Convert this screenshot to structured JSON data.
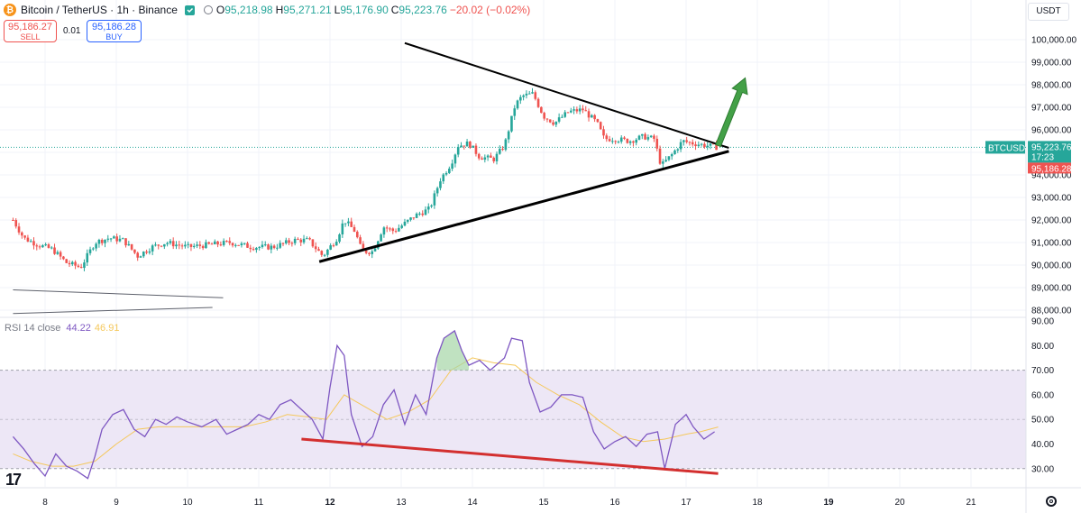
{
  "header": {
    "symbol": "Bitcoin / TetherUS · 1h · Binance",
    "logo_glyph": "₿",
    "ohlc": [
      {
        "key": "O",
        "value": "95,218.98",
        "color": "green"
      },
      {
        "key": "H",
        "value": "95,271.21",
        "color": "green"
      },
      {
        "key": "L",
        "value": "95,176.90",
        "color": "green"
      },
      {
        "key": "C",
        "value": "95,223.76",
        "color": "green"
      }
    ],
    "change": "−20.02 (−0.02%)"
  },
  "trade": {
    "sell_price": "95,186.27",
    "sell_label": "SELL",
    "spread": "0.01",
    "buy_price": "95,186.28",
    "buy_label": "BUY"
  },
  "price_scale": {
    "currency": "USDT",
    "symbol_tag": "BTCUSDT",
    "last_price": "95,223.76",
    "countdown": "17:23",
    "bid_price": "95,186.28"
  },
  "rsi": {
    "label": "RSI 14 close",
    "value": "44.22",
    "ma_value": "46.91"
  },
  "colors": {
    "up": "#26a69a",
    "down": "#ef5350",
    "rsi_line": "#7e57c2",
    "rsi_ma": "#f5c85c",
    "rsi_band": "#ede7f6",
    "divergence": "#d32f2f",
    "arrow": "#43a047"
  },
  "chart_data": [
    {
      "type": "candlestick",
      "title": "Bitcoin / TetherUS · 1h · Binance",
      "x_ticks": [
        "8",
        "9",
        "10",
        "11",
        "12",
        "13",
        "14",
        "15",
        "16",
        "17",
        "18",
        "19",
        "20",
        "21"
      ],
      "y_ticks": [
        "100,000.00",
        "99,000.00",
        "98,000.00",
        "97,000.00",
        "96,000.00",
        "95,000.00",
        "94,000.00",
        "93,000.00",
        "92,000.00",
        "91,000.00",
        "90,000.00",
        "89,000.00",
        "88,000.00"
      ],
      "ylim": [
        87700,
        100300
      ],
      "series_close_path": [
        [
          7.55,
          92000
        ],
        [
          7.7,
          91200
        ],
        [
          7.9,
          90900
        ],
        [
          8.1,
          90700
        ],
        [
          8.3,
          90100
        ],
        [
          8.5,
          89900
        ],
        [
          8.7,
          91000
        ],
        [
          8.9,
          91200
        ],
        [
          9.1,
          91100
        ],
        [
          9.3,
          90400
        ],
        [
          9.5,
          90800
        ],
        [
          9.7,
          91000
        ],
        [
          10.0,
          90800
        ],
        [
          10.3,
          90900
        ],
        [
          10.6,
          91000
        ],
        [
          10.9,
          90800
        ],
        [
          11.2,
          90800
        ],
        [
          11.5,
          91100
        ],
        [
          11.7,
          91100
        ],
        [
          11.9,
          90400
        ],
        [
          12.1,
          91200
        ],
        [
          12.2,
          92000
        ],
        [
          12.35,
          91500
        ],
        [
          12.45,
          90600
        ],
        [
          12.6,
          90600
        ],
        [
          12.75,
          91700
        ],
        [
          12.9,
          91500
        ],
        [
          13.2,
          92200
        ],
        [
          13.4,
          92500
        ],
        [
          13.55,
          93800
        ],
        [
          13.7,
          94500
        ],
        [
          13.8,
          95300
        ],
        [
          13.95,
          95400
        ],
        [
          14.1,
          94800
        ],
        [
          14.3,
          94700
        ],
        [
          14.45,
          95300
        ],
        [
          14.6,
          97100
        ],
        [
          14.7,
          97500
        ],
        [
          14.85,
          97600
        ],
        [
          15.0,
          96600
        ],
        [
          15.15,
          96300
        ],
        [
          15.35,
          96800
        ],
        [
          15.55,
          96900
        ],
        [
          15.75,
          96300
        ],
        [
          15.85,
          95600
        ],
        [
          16.0,
          95600
        ],
        [
          16.2,
          95500
        ],
        [
          16.4,
          95700
        ],
        [
          16.55,
          95600
        ],
        [
          16.65,
          94400
        ],
        [
          16.8,
          94900
        ],
        [
          16.95,
          95500
        ],
        [
          17.1,
          95400
        ],
        [
          17.3,
          95300
        ],
        [
          17.45,
          95224
        ]
      ],
      "trendlines": {
        "upper": [
          [
            13.05,
            99850
          ],
          [
            17.6,
            95200
          ]
        ],
        "lower": [
          [
            11.85,
            90150
          ],
          [
            17.6,
            95050
          ]
        ],
        "old_upper": [
          [
            7.55,
            88900
          ],
          [
            10.5,
            88550
          ]
        ],
        "old_lower": [
          [
            7.55,
            87850
          ],
          [
            10.35,
            88120
          ]
        ]
      },
      "breakout_arrow": {
        "from": [
          17.45,
          95300
        ],
        "to": [
          17.83,
          98300
        ]
      },
      "last_price": 95223.76
    },
    {
      "type": "line",
      "title": "RSI 14 close",
      "y_ticks": [
        "90.00",
        "80.00",
        "70.00",
        "60.00",
        "50.00",
        "40.00",
        "30.00"
      ],
      "ylim": [
        22,
        90
      ],
      "overbought": 70,
      "oversold": 30,
      "rsi": [
        [
          7.55,
          43
        ],
        [
          7.7,
          38
        ],
        [
          7.85,
          32
        ],
        [
          8.0,
          27
        ],
        [
          8.15,
          36
        ],
        [
          8.3,
          31
        ],
        [
          8.45,
          29
        ],
        [
          8.6,
          26
        ],
        [
          8.7,
          35
        ],
        [
          8.8,
          46
        ],
        [
          8.95,
          52
        ],
        [
          9.1,
          54
        ],
        [
          9.25,
          46
        ],
        [
          9.4,
          43
        ],
        [
          9.55,
          50
        ],
        [
          9.7,
          48
        ],
        [
          9.85,
          51
        ],
        [
          10.0,
          49
        ],
        [
          10.2,
          47
        ],
        [
          10.4,
          50
        ],
        [
          10.55,
          44
        ],
        [
          10.7,
          46
        ],
        [
          10.85,
          48
        ],
        [
          11.0,
          52
        ],
        [
          11.15,
          50
        ],
        [
          11.3,
          56
        ],
        [
          11.45,
          58
        ],
        [
          11.6,
          54
        ],
        [
          11.75,
          50
        ],
        [
          11.9,
          42
        ],
        [
          12.0,
          63
        ],
        [
          12.1,
          80
        ],
        [
          12.2,
          76
        ],
        [
          12.3,
          52
        ],
        [
          12.45,
          39
        ],
        [
          12.6,
          43
        ],
        [
          12.75,
          56
        ],
        [
          12.9,
          62
        ],
        [
          13.05,
          48
        ],
        [
          13.2,
          60
        ],
        [
          13.35,
          52
        ],
        [
          13.5,
          75
        ],
        [
          13.6,
          83
        ],
        [
          13.75,
          86
        ],
        [
          13.85,
          78
        ],
        [
          13.95,
          72
        ],
        [
          14.1,
          74
        ],
        [
          14.25,
          70
        ],
        [
          14.45,
          75
        ],
        [
          14.55,
          83
        ],
        [
          14.7,
          82
        ],
        [
          14.8,
          65
        ],
        [
          14.95,
          53
        ],
        [
          15.1,
          55
        ],
        [
          15.25,
          60
        ],
        [
          15.4,
          60
        ],
        [
          15.55,
          59
        ],
        [
          15.7,
          45
        ],
        [
          15.85,
          38
        ],
        [
          16.0,
          41
        ],
        [
          16.15,
          43
        ],
        [
          16.3,
          39
        ],
        [
          16.45,
          44
        ],
        [
          16.6,
          45
        ],
        [
          16.7,
          30
        ],
        [
          16.85,
          48
        ],
        [
          17.0,
          52
        ],
        [
          17.1,
          47
        ],
        [
          17.25,
          42
        ],
        [
          17.4,
          45
        ]
      ],
      "rsi_ma": [
        [
          7.55,
          36
        ],
        [
          7.8,
          33
        ],
        [
          8.1,
          31
        ],
        [
          8.4,
          31
        ],
        [
          8.7,
          33
        ],
        [
          9.0,
          40
        ],
        [
          9.3,
          46
        ],
        [
          9.6,
          47
        ],
        [
          9.9,
          47
        ],
        [
          10.2,
          47
        ],
        [
          10.5,
          47
        ],
        [
          10.8,
          47
        ],
        [
          11.1,
          49
        ],
        [
          11.4,
          52
        ],
        [
          11.7,
          51
        ],
        [
          11.95,
          50
        ],
        [
          12.2,
          60
        ],
        [
          12.5,
          55
        ],
        [
          12.8,
          50
        ],
        [
          13.1,
          53
        ],
        [
          13.4,
          58
        ],
        [
          13.7,
          70
        ],
        [
          14.0,
          75
        ],
        [
          14.3,
          73
        ],
        [
          14.6,
          72
        ],
        [
          14.9,
          65
        ],
        [
          15.2,
          60
        ],
        [
          15.5,
          56
        ],
        [
          15.8,
          49
        ],
        [
          16.1,
          43
        ],
        [
          16.4,
          41
        ],
        [
          16.7,
          42
        ],
        [
          17.0,
          44
        ],
        [
          17.2,
          45
        ],
        [
          17.45,
          46.9
        ]
      ],
      "divergence_line": [
        [
          11.6,
          42
        ],
        [
          17.45,
          28
        ]
      ]
    }
  ]
}
